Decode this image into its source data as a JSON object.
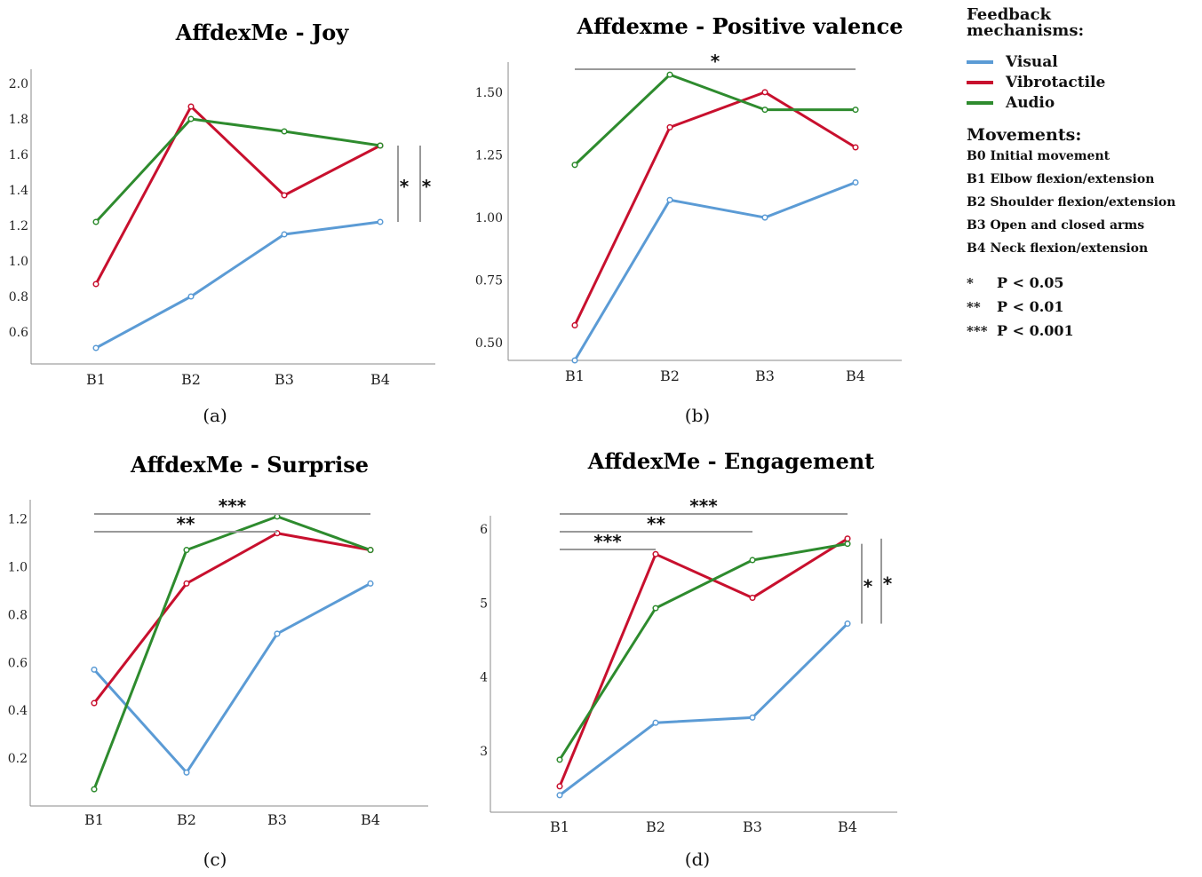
{
  "legend": {
    "feedback_heading": "Feedback mechanisms:",
    "series": [
      {
        "label": "Visual",
        "color": "#5b9bd5"
      },
      {
        "label": "Vibrotactile",
        "color": "#c8102e"
      },
      {
        "label": "Audio",
        "color": "#2e8b2e"
      }
    ],
    "movements_heading": "Movements:",
    "movements": [
      "B0 Initial movement",
      "B1 Elbow flexion/extension",
      "B2 Shoulder flexion/extension",
      "B3 Open and closed arms",
      "B4 Neck flexion/extension"
    ],
    "pvalues": [
      {
        "stars": "*",
        "text": "P < 0.05"
      },
      {
        "stars": "**",
        "text": "P < 0.01"
      },
      {
        "stars": "***",
        "text": "P < 0.001"
      }
    ]
  },
  "chart_data": [
    {
      "type": "line",
      "panel_label": "(a)",
      "title": "AffdexMe - Joy",
      "categories": [
        "B1",
        "B2",
        "B3",
        "B4"
      ],
      "ylim": [
        0.42,
        2.08
      ],
      "yticks": [
        "0.6",
        "0.8",
        "1.0",
        "1.2",
        "1.4",
        "1.6",
        "1.8",
        "2.0"
      ],
      "grid": false,
      "series": [
        {
          "name": "Visual",
          "values": [
            0.51,
            0.8,
            1.15,
            1.22
          ]
        },
        {
          "name": "Vibrotactile",
          "values": [
            0.87,
            1.87,
            1.37,
            1.65
          ]
        },
        {
          "name": "Audio",
          "values": [
            1.22,
            1.8,
            1.73,
            1.65
          ]
        }
      ],
      "significance": [
        {
          "type": "vertical",
          "x_after": 1,
          "y_from": 1.22,
          "y_to": 1.65,
          "label": "*"
        },
        {
          "type": "vertical",
          "x_after": 2,
          "y_from": 1.22,
          "y_to": 1.65,
          "label": "*"
        }
      ]
    },
    {
      "type": "line",
      "panel_label": "(b)",
      "title": "Affdexme - Positive valence",
      "categories": [
        "B1",
        "B2",
        "B3",
        "B4"
      ],
      "ylim": [
        0.43,
        1.62
      ],
      "yticks": [
        "0.50",
        "0.75",
        "1.00",
        "1.25",
        "1.50"
      ],
      "grid": false,
      "series": [
        {
          "name": "Visual",
          "values": [
            0.43,
            1.07,
            1.0,
            1.14
          ]
        },
        {
          "name": "Vibrotactile",
          "values": [
            0.57,
            1.36,
            1.5,
            1.28
          ]
        },
        {
          "name": "Audio",
          "values": [
            1.21,
            1.57,
            1.43,
            1.43
          ]
        }
      ],
      "significance": [
        {
          "type": "horizontal",
          "from": "B1",
          "to": "B4",
          "level": 0,
          "label": "*"
        }
      ]
    },
    {
      "type": "line",
      "panel_label": "(c)",
      "title": "AffdexMe - Surprise",
      "categories": [
        "B1",
        "B2",
        "B3",
        "B4"
      ],
      "ylim": [
        0.0,
        1.28
      ],
      "yticks": [
        "0.2",
        "0.4",
        "0.6",
        "0.8",
        "1.0",
        "1.2"
      ],
      "grid": false,
      "series": [
        {
          "name": "Visual",
          "values": [
            0.57,
            0.14,
            0.72,
            0.93
          ]
        },
        {
          "name": "Vibrotactile",
          "values": [
            0.43,
            0.93,
            1.14,
            1.07
          ]
        },
        {
          "name": "Audio",
          "values": [
            0.07,
            1.07,
            1.21,
            1.07
          ]
        }
      ],
      "significance": [
        {
          "type": "horizontal",
          "from": "B1",
          "to": "B4",
          "level": 0,
          "label": "***"
        },
        {
          "type": "horizontal",
          "from": "B1",
          "to": "B3",
          "level": 1,
          "label": "**"
        }
      ]
    },
    {
      "type": "line",
      "panel_label": "(d)",
      "title": "AffdexMe - Engagement",
      "categories": [
        "B1",
        "B2",
        "B3",
        "B4"
      ],
      "ylim": [
        2.17,
        6.18
      ],
      "yticks": [
        "3",
        "4",
        "5",
        "6"
      ],
      "grid": false,
      "series": [
        {
          "name": "Visual",
          "values": [
            2.4,
            3.38,
            3.45,
            4.72
          ]
        },
        {
          "name": "Vibrotactile",
          "values": [
            2.52,
            5.66,
            5.07,
            5.87
          ]
        },
        {
          "name": "Audio",
          "values": [
            2.88,
            4.93,
            5.58,
            5.8
          ]
        }
      ],
      "significance": [
        {
          "type": "horizontal",
          "from": "B1",
          "to": "B4",
          "level": 0,
          "label": "***"
        },
        {
          "type": "horizontal",
          "from": "B1",
          "to": "B3",
          "level": 1,
          "label": "**"
        },
        {
          "type": "horizontal",
          "from": "B1",
          "to": "B2",
          "level": 2,
          "label": "***"
        },
        {
          "type": "vertical",
          "x_after": 1,
          "y_from": 4.72,
          "y_to": 5.8,
          "label": "*"
        },
        {
          "type": "vertical",
          "x_after": 2,
          "y_from": 4.72,
          "y_to": 5.87,
          "label": "*"
        }
      ]
    }
  ]
}
